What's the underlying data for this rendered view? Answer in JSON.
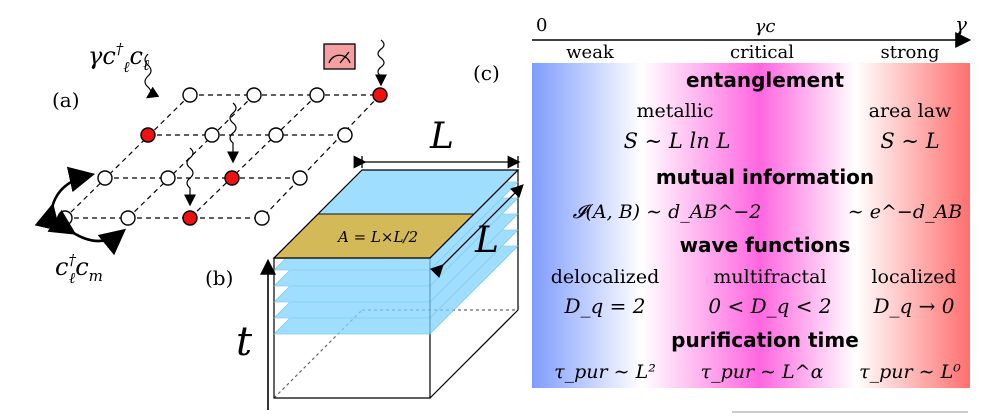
{
  "panel_a": {
    "label": "(a)",
    "measure_term": "γc†ℓcℓ",
    "hop_term": "c†ℓcm"
  },
  "panel_b": {
    "label": "(b)",
    "length_top": "L",
    "length_side": "L",
    "time_axis": "t",
    "region": "A = L×L/2"
  },
  "panel_c": {
    "label": "(c)",
    "axis": {
      "start": "0",
      "critical": "γc",
      "end": "γ",
      "regimes": [
        "weak",
        "critical",
        "strong"
      ]
    },
    "sections": {
      "entanglement": {
        "title": "entanglement",
        "left_label": "metallic",
        "right_label": "area law",
        "left_formula": "S ∼ L ln L",
        "right_formula": "S ∼ L"
      },
      "mutual_information": {
        "title": "mutual information",
        "left_formula": "𝓘(A, B) ∼ d_AB^−2",
        "right_formula": "∼ e^−d_AB"
      },
      "wave_functions": {
        "title": "wave functions",
        "labels": [
          "delocalized",
          "multifractal",
          "localized"
        ],
        "formulas": [
          "D_q = 2",
          "0 < D_q < 2",
          "D_q → 0"
        ]
      },
      "purification": {
        "title": "purification time",
        "formulas": [
          "τ_pur ∼ L²",
          "τ_pur ∼ L^α",
          "τ_pur ∼ L⁰"
        ]
      }
    },
    "colors": {
      "weak": "#7f9cff",
      "critical": "#ff66e0",
      "strong": "#ff6f6f",
      "measured_site": "#ee1111",
      "detector": "#f4a0a0",
      "slice": "#7fd4ff",
      "region": "#d8b64a"
    }
  }
}
